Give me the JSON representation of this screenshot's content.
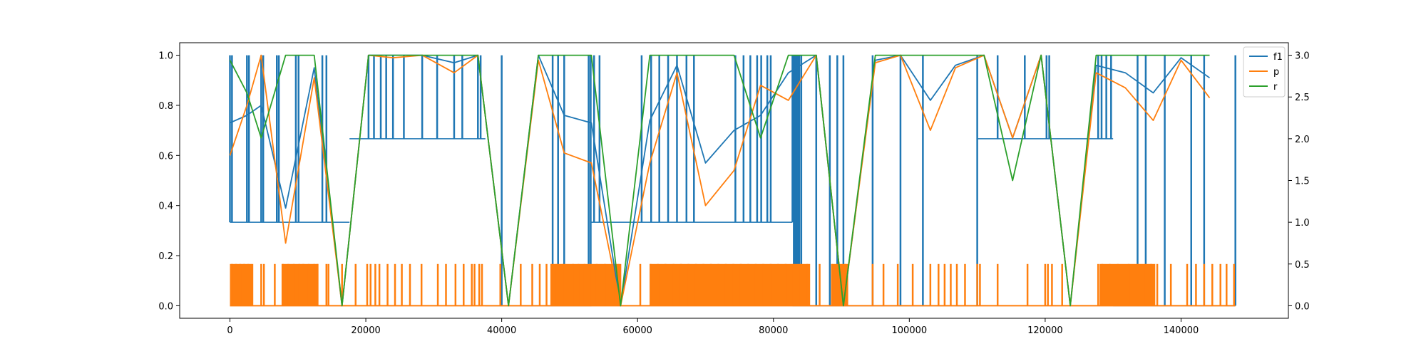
{
  "chart_data": {
    "type": "line",
    "grid": false,
    "legend": {
      "placement": "top-right",
      "entries": [
        {
          "name": "f1",
          "color": "#1f77b4"
        },
        {
          "name": "p",
          "color": "#ff7f0e"
        },
        {
          "name": "r",
          "color": "#2ca02c"
        }
      ]
    },
    "x_axis": {
      "range": [
        -7400,
        155800
      ],
      "ticks": [
        0,
        20000,
        40000,
        60000,
        80000,
        100000,
        120000,
        140000
      ],
      "tick_labels": [
        "0",
        "20000",
        "40000",
        "60000",
        "80000",
        "100000",
        "120000",
        "140000"
      ]
    },
    "y_axis_left": {
      "range": [
        -0.05,
        1.05
      ],
      "ticks": [
        0.0,
        0.2,
        0.4,
        0.6,
        0.8,
        1.0
      ],
      "tick_labels": [
        "0.0",
        "0.2",
        "0.4",
        "0.6",
        "0.8",
        "1.0"
      ]
    },
    "y_axis_right": {
      "range": [
        -0.15,
        3.15
      ],
      "ticks": [
        0.0,
        0.5,
        1.0,
        1.5,
        2.0,
        2.5,
        3.0
      ],
      "tick_labels": [
        "0.0",
        "0.5",
        "1.0",
        "1.5",
        "2.0",
        "2.5",
        "3.0"
      ]
    },
    "series": [
      {
        "name": "f1",
        "axis": "left",
        "color": "#1f77b4",
        "x": [
          0,
          2500,
          4600,
          8200,
          12400,
          16500,
          20400,
          24000,
          28300,
          33000,
          36500,
          41000,
          45400,
          49200,
          53200,
          57500,
          61800,
          65800,
          70000,
          74200,
          78100,
          82200,
          86300,
          90300,
          95000,
          98700,
          103100,
          106800,
          111000,
          115200,
          119400,
          123700,
          127500,
          131800,
          135900,
          140000,
          144200
        ],
        "y": [
          0.73,
          0.76,
          0.8,
          0.39,
          0.95,
          0.0,
          1.0,
          1.0,
          1.0,
          0.97,
          1.0,
          0.0,
          1.0,
          0.76,
          0.73,
          0.0,
          0.74,
          0.96,
          0.57,
          0.7,
          0.76,
          0.93,
          1.0,
          0.0,
          0.98,
          1.0,
          0.82,
          0.96,
          1.0,
          0.67,
          1.0,
          0.0,
          0.96,
          0.93,
          0.85,
          0.99,
          0.91
        ]
      },
      {
        "name": "p",
        "axis": "left",
        "color": "#ff7f0e",
        "x": [
          0,
          2500,
          4600,
          8200,
          12400,
          16500,
          20400,
          24000,
          28300,
          33000,
          36500,
          41000,
          45400,
          49200,
          53200,
          57500,
          61800,
          65800,
          70000,
          74200,
          78100,
          82200,
          86300,
          90300,
          95000,
          98700,
          103100,
          106800,
          111000,
          115200,
          119400,
          123700,
          127500,
          131800,
          135900,
          140000,
          144200
        ],
        "y": [
          0.6,
          0.8,
          1.0,
          0.25,
          0.91,
          0.0,
          1.0,
          0.99,
          1.0,
          0.93,
          1.0,
          0.0,
          0.98,
          0.61,
          0.57,
          0.0,
          0.57,
          0.93,
          0.4,
          0.54,
          0.88,
          0.82,
          1.0,
          0.0,
          0.97,
          1.0,
          0.7,
          0.95,
          1.0,
          0.67,
          1.0,
          0.0,
          0.93,
          0.87,
          0.74,
          0.98,
          0.83
        ]
      },
      {
        "name": "r",
        "axis": "left",
        "color": "#2ca02c",
        "x": [
          0,
          2500,
          4600,
          8200,
          12400,
          16500,
          20400,
          24000,
          28300,
          33000,
          36500,
          41000,
          45400,
          49200,
          53200,
          57500,
          61800,
          65800,
          70000,
          74200,
          78100,
          82200,
          86300,
          90300,
          95000,
          98700,
          103100,
          106800,
          111000,
          115200,
          119400,
          123700,
          127500,
          131800,
          135900,
          140000,
          144200
        ],
        "y": [
          0.98,
          0.85,
          0.67,
          1.0,
          1.0,
          0.0,
          1.0,
          1.0,
          1.0,
          1.0,
          1.0,
          0.0,
          1.0,
          1.0,
          1.0,
          0.0,
          1.0,
          1.0,
          1.0,
          1.0,
          0.67,
          1.0,
          1.0,
          0.0,
          1.0,
          1.0,
          1.0,
          1.0,
          1.0,
          0.5,
          1.0,
          0.0,
          1.0,
          1.0,
          1.0,
          1.0,
          1.0
        ]
      },
      {
        "name": "f1 (step, right axis)",
        "axis": "right",
        "color": "#1f77b4",
        "kind": "step",
        "segments": [
          {
            "x": [
              0,
              17600
            ],
            "y": 1.0
          },
          {
            "x": [
              17600,
              37600
            ],
            "y": 2.0
          },
          {
            "x": [
              37600,
              53200
            ],
            "y": 0.0
          },
          {
            "x": [
              53200,
              82800
            ],
            "y": 1.0
          },
          {
            "x": [
              82800,
              110000
            ],
            "y": 0.0
          },
          {
            "x": [
              110000,
              130000
            ],
            "y": 2.0
          },
          {
            "x": [
              130000,
              148000
            ],
            "y": 0.0
          }
        ],
        "spikes_x": [
          0,
          300,
          2500,
          2800,
          4600,
          4900,
          6900,
          7200,
          9700,
          10100,
          13600,
          14200,
          20400,
          21200,
          22200,
          23000,
          24000,
          25600,
          28300,
          30500,
          33000,
          34200,
          36500,
          36900,
          40000,
          47500,
          48300,
          49200,
          52800,
          53100,
          53600,
          54400,
          60600,
          62000,
          63200,
          64500,
          65800,
          67200,
          68300,
          74400,
          75600,
          76600,
          77600,
          78200,
          79100,
          79600,
          82800,
          83000,
          83200,
          83400,
          83600,
          83800,
          84100,
          86300,
          88300,
          89400,
          90300,
          94600,
          98700,
          102000,
          110000,
          113000,
          117000,
          120200,
          120600,
          127800,
          128300,
          129000,
          129700,
          133600,
          134800,
          137600,
          141500,
          143400,
          148000
        ],
        "spike_top": 3.0,
        "spike_base_default": 0.0
      },
      {
        "name": "p (step, right axis)",
        "axis": "right",
        "color": "#ff7f0e",
        "kind": "spikes",
        "baseline": 0.0,
        "spike_top": 0.5,
        "dense_bands": [
          [
            0,
            3200
          ],
          [
            7600,
            13000
          ],
          [
            47300,
            57600
          ],
          [
            61800,
            85400
          ],
          [
            88600,
            91000
          ],
          [
            128000,
            136200
          ]
        ],
        "spikes_x": [
          300,
          900,
          1500,
          2100,
          2700,
          3300,
          4600,
          5000,
          6600,
          7800,
          8600,
          9400,
          10200,
          10800,
          11600,
          12400,
          12900,
          14200,
          14500,
          16500,
          18500,
          20200,
          20700,
          21400,
          22000,
          23200,
          24300,
          25300,
          26500,
          28200,
          30600,
          31800,
          33200,
          34400,
          35600,
          36000,
          36700,
          37100,
          39800,
          42800,
          44500,
          45600,
          46600,
          47300,
          48100,
          49000,
          50500,
          51300,
          52200,
          53000,
          54000,
          55200,
          56400,
          57200,
          60400,
          61900,
          63000,
          64100,
          65300,
          66400,
          67500,
          68600,
          69700,
          70800,
          71900,
          73000,
          74100,
          75200,
          76300,
          77400,
          78500,
          79600,
          80700,
          81800,
          82900,
          84000,
          85000,
          86800,
          88600,
          89600,
          90600,
          94600,
          96200,
          98300,
          100500,
          103100,
          104300,
          105200,
          106100,
          107000,
          108200,
          110000,
          110400,
          113000,
          117400,
          120000,
          120400,
          121000,
          122500,
          127800,
          128400,
          129500,
          130700,
          132300,
          133600,
          134800,
          135600,
          136500,
          138500,
          140900,
          142200,
          143400,
          144600,
          145800,
          146700,
          147800
        ]
      }
    ]
  }
}
